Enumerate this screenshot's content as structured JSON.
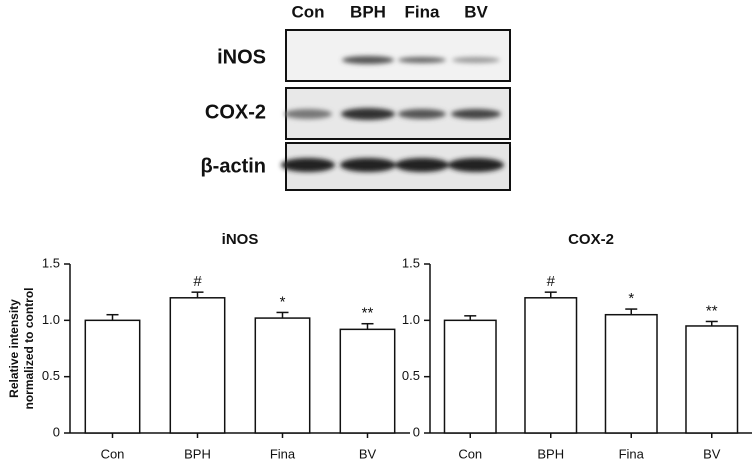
{
  "blot": {
    "lanes": [
      "Con",
      "BPH",
      "Fina",
      "BV"
    ],
    "rows": [
      "iNOS",
      "COX-2",
      "β-actin"
    ]
  },
  "chart_data": [
    {
      "type": "bar",
      "title": "iNOS",
      "y_label": [
        "Relative intensity",
        "normalized to control"
      ],
      "categories": [
        "Con",
        "BPH",
        "Fina",
        "BV"
      ],
      "values": [
        1.0,
        1.2,
        1.02,
        0.92
      ],
      "errors": [
        0.05,
        0.05,
        0.05,
        0.05
      ],
      "annotations": [
        null,
        "#",
        "*",
        "**"
      ],
      "color": "#ffffff",
      "ylim": [
        0,
        1.5
      ],
      "yticks": [
        0,
        0.5,
        {
          "value": 1,
          "label": "1.0"
        },
        1.5
      ]
    },
    {
      "type": "bar",
      "title": "COX-2",
      "categories": [
        "Con",
        "BPH",
        "Fina",
        "BV"
      ],
      "values": [
        1.0,
        1.2,
        1.05,
        0.95
      ],
      "errors": [
        0.04,
        0.05,
        0.05,
        0.04
      ],
      "annotations": [
        null,
        "#",
        "*",
        "**"
      ],
      "color": "#ffffff",
      "ylim": [
        0,
        1.5
      ],
      "yticks": [
        0,
        0.5,
        {
          "value": 1,
          "label": "1.0"
        },
        1.5
      ]
    }
  ]
}
